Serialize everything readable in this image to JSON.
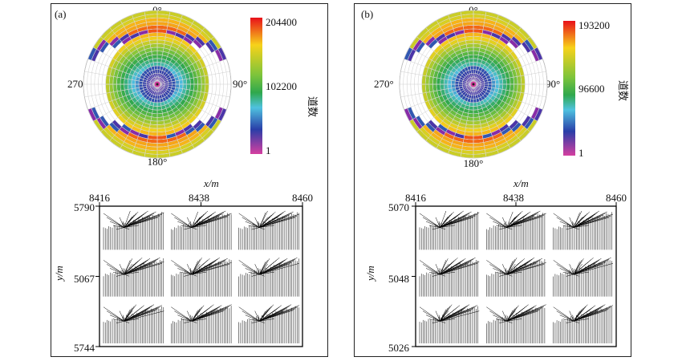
{
  "chart_data": [
    {
      "type": "heatmap",
      "panel_label": "(a)",
      "polar": {
        "angle_labels": [
          "0°",
          "90°",
          "180°",
          "270°"
        ],
        "colorbar_ticks": [
          "204400",
          "102200",
          "1"
        ],
        "colorbar_label": "道数",
        "value_range": [
          1,
          204400
        ]
      },
      "layout": {
        "xlabel": "x/m",
        "ylabel": "y/m",
        "x_ticks": [
          "8416",
          "8438",
          "8460"
        ],
        "y_ticks": [
          "5790",
          "5067",
          "5744"
        ]
      }
    },
    {
      "type": "heatmap",
      "panel_label": "(b)",
      "polar": {
        "angle_labels": [
          "0°",
          "90°",
          "180°",
          "270°"
        ],
        "colorbar_ticks": [
          "193200",
          "96600",
          "1"
        ],
        "colorbar_label": "道数",
        "value_range": [
          1,
          193200
        ]
      },
      "layout": {
        "xlabel": "x/m",
        "ylabel": "y/m",
        "x_ticks": [
          "8416",
          "8438",
          "8460"
        ],
        "y_ticks": [
          "5070",
          "5048",
          "5026"
        ]
      }
    }
  ]
}
